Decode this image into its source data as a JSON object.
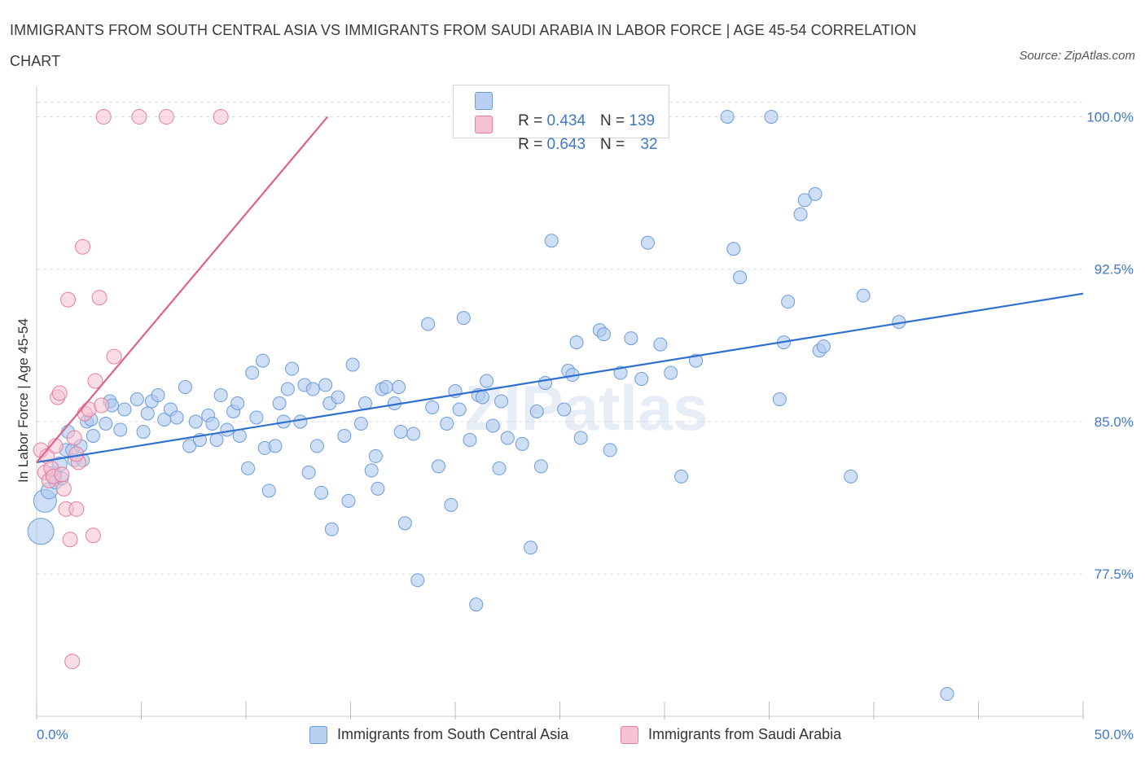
{
  "title": "IMMIGRANTS FROM SOUTH CENTRAL ASIA VS IMMIGRANTS FROM SAUDI ARABIA IN LABOR FORCE | AGE 45-54 CORRELATION CHART",
  "source": "Source: ZipAtlas.com",
  "watermark": "ZIPatlas",
  "legend_top": {
    "rows": [
      {
        "r_label": "R = ",
        "r_value": "0.434",
        "n_label": "N = ",
        "n_value": "139"
      },
      {
        "r_label": "R = ",
        "r_value": "0.643",
        "n_label": "N = ",
        "n_value": "32"
      }
    ]
  },
  "legend_bottom": {
    "items": [
      "Immigrants from South Central Asia",
      "Immigrants from Saudi Arabia"
    ]
  },
  "colors": {
    "blue_fill": "#adc9ef",
    "blue_stroke": "#6d9bdc",
    "blue_line": "#2f6fd0",
    "pink_fill": "#f6c0d0",
    "pink_stroke": "#e57ea0",
    "pink_line": "#e0608c",
    "tick_text": "#3f78c8",
    "grid": "#dddddd"
  },
  "chart_data": {
    "type": "scatter",
    "title": "IMMIGRANTS FROM SOUTH CENTRAL ASIA VS IMMIGRANTS FROM SAUDI ARABIA IN LABOR FORCE | AGE 45-54 CORRELATION CHART",
    "xlabel": "",
    "ylabel": "In Labor Force | Age 45-54",
    "xlim": [
      0,
      50
    ],
    "ylim": [
      70.5,
      101.5
    ],
    "x_tick_labels": [
      "0.0%",
      "50.0%"
    ],
    "x_tick_values": [
      0,
      50
    ],
    "y_tick_labels": [
      "77.5%",
      "85.0%",
      "92.5%",
      "100.0%"
    ],
    "y_tick_values": [
      77.5,
      85.0,
      92.5,
      100.0
    ],
    "grid": "horizontal dashed",
    "legend": "top-center and bottom",
    "series": [
      {
        "name": "Immigrants from South Central Asia",
        "R": 0.434,
        "N": 139,
        "trend": {
          "x": [
            0,
            50
          ],
          "y": [
            83.0,
            91.3
          ]
        },
        "points": [
          [
            0.2,
            79.6,
            16
          ],
          [
            0.4,
            81.1,
            14
          ],
          [
            0.6,
            81.6,
            10
          ],
          [
            0.8,
            82.4,
            10
          ],
          [
            0.9,
            82.0,
            8
          ],
          [
            1.1,
            82.9,
            9
          ],
          [
            1.2,
            82.2,
            8
          ],
          [
            1.4,
            83.6,
            8
          ],
          [
            1.5,
            84.5,
            8
          ],
          [
            1.7,
            83.6,
            8
          ],
          [
            1.8,
            83.1,
            8
          ],
          [
            2.1,
            83.8,
            8
          ],
          [
            2.2,
            83.1,
            8
          ],
          [
            2.4,
            85.0,
            8
          ],
          [
            2.6,
            85.1,
            8
          ],
          [
            2.7,
            84.3,
            8
          ],
          [
            3.3,
            84.9,
            8
          ],
          [
            3.5,
            86.0,
            8
          ],
          [
            3.6,
            85.8,
            8
          ],
          [
            4.0,
            84.6,
            8
          ],
          [
            4.2,
            85.6,
            8
          ],
          [
            4.8,
            86.1,
            8
          ],
          [
            5.1,
            84.5,
            8
          ],
          [
            5.3,
            85.4,
            8
          ],
          [
            5.5,
            86.0,
            8
          ],
          [
            5.8,
            86.3,
            8
          ],
          [
            6.1,
            85.1,
            8
          ],
          [
            6.4,
            85.6,
            8
          ],
          [
            6.7,
            85.2,
            8
          ],
          [
            7.1,
            86.7,
            8
          ],
          [
            7.3,
            83.8,
            8
          ],
          [
            7.6,
            85.0,
            8
          ],
          [
            7.8,
            84.1,
            8
          ],
          [
            8.2,
            85.3,
            8
          ],
          [
            8.4,
            84.9,
            8
          ],
          [
            8.6,
            84.1,
            8
          ],
          [
            8.8,
            86.3,
            8
          ],
          [
            9.1,
            84.6,
            8
          ],
          [
            9.4,
            85.5,
            8
          ],
          [
            9.6,
            85.9,
            8
          ],
          [
            9.7,
            84.3,
            8
          ],
          [
            10.1,
            82.7,
            8
          ],
          [
            10.3,
            87.4,
            8
          ],
          [
            10.5,
            85.2,
            8
          ],
          [
            10.8,
            88.0,
            8
          ],
          [
            10.9,
            83.7,
            8
          ],
          [
            11.1,
            81.6,
            8
          ],
          [
            11.4,
            83.8,
            8
          ],
          [
            11.6,
            85.9,
            8
          ],
          [
            11.8,
            85.0,
            8
          ],
          [
            12.0,
            86.6,
            8
          ],
          [
            12.2,
            87.6,
            8
          ],
          [
            12.6,
            85.0,
            8
          ],
          [
            12.8,
            86.8,
            8
          ],
          [
            13.0,
            82.5,
            8
          ],
          [
            13.2,
            86.6,
            8
          ],
          [
            13.4,
            83.8,
            8
          ],
          [
            13.6,
            81.5,
            8
          ],
          [
            13.8,
            86.8,
            8
          ],
          [
            14.0,
            85.9,
            8
          ],
          [
            14.1,
            79.7,
            8
          ],
          [
            14.4,
            86.2,
            8
          ],
          [
            14.7,
            84.3,
            8
          ],
          [
            14.9,
            81.1,
            8
          ],
          [
            15.1,
            87.8,
            8
          ],
          [
            15.5,
            84.9,
            8
          ],
          [
            15.7,
            85.9,
            8
          ],
          [
            16.0,
            82.6,
            8
          ],
          [
            16.2,
            83.3,
            8
          ],
          [
            16.3,
            81.7,
            8
          ],
          [
            16.5,
            86.6,
            8
          ],
          [
            16.7,
            86.7,
            8
          ],
          [
            17.1,
            85.9,
            8
          ],
          [
            17.3,
            86.7,
            8
          ],
          [
            17.4,
            84.5,
            8
          ],
          [
            17.6,
            80.0,
            8
          ],
          [
            18.0,
            84.4,
            8
          ],
          [
            18.2,
            77.2,
            8
          ],
          [
            18.7,
            89.8,
            8
          ],
          [
            18.9,
            85.7,
            8
          ],
          [
            19.2,
            82.8,
            8
          ],
          [
            19.6,
            84.9,
            8
          ],
          [
            19.8,
            80.9,
            8
          ],
          [
            20.0,
            86.5,
            8
          ],
          [
            20.2,
            85.6,
            8
          ],
          [
            20.4,
            90.1,
            8
          ],
          [
            20.7,
            84.1,
            8
          ],
          [
            21.1,
            86.3,
            8
          ],
          [
            21.3,
            86.2,
            8
          ],
          [
            21.5,
            87.0,
            8
          ],
          [
            21.8,
            84.8,
            8
          ],
          [
            22.1,
            82.7,
            8
          ],
          [
            22.2,
            86.0,
            8
          ],
          [
            22.5,
            84.2,
            8
          ],
          [
            23.2,
            83.9,
            8
          ],
          [
            23.6,
            78.8,
            8
          ],
          [
            23.9,
            85.5,
            8
          ],
          [
            24.1,
            82.8,
            8
          ],
          [
            24.3,
            86.9,
            8
          ],
          [
            24.6,
            93.9,
            8
          ],
          [
            25.2,
            85.6,
            8
          ],
          [
            25.4,
            87.5,
            8
          ],
          [
            25.6,
            87.3,
            8
          ],
          [
            25.8,
            88.9,
            8
          ],
          [
            26.0,
            84.2,
            8
          ],
          [
            26.9,
            89.5,
            8
          ],
          [
            27.1,
            89.3,
            8
          ],
          [
            27.4,
            83.6,
            8
          ],
          [
            27.9,
            87.4,
            8
          ],
          [
            28.4,
            89.1,
            8
          ],
          [
            28.9,
            87.1,
            8
          ],
          [
            29.2,
            93.8,
            8
          ],
          [
            29.5,
            100.0,
            8
          ],
          [
            29.8,
            88.8,
            8
          ],
          [
            30.3,
            87.4,
            8
          ],
          [
            30.8,
            82.3,
            8
          ],
          [
            31.5,
            88.0,
            8
          ],
          [
            33.0,
            100.0,
            8
          ],
          [
            33.3,
            93.5,
            8
          ],
          [
            33.6,
            92.1,
            8
          ],
          [
            35.1,
            100.0,
            8
          ],
          [
            35.5,
            86.1,
            8
          ],
          [
            35.7,
            88.9,
            8
          ],
          [
            35.9,
            90.9,
            8
          ],
          [
            36.5,
            95.2,
            8
          ],
          [
            36.7,
            95.9,
            8
          ],
          [
            37.2,
            96.2,
            8
          ],
          [
            37.4,
            88.5,
            8
          ],
          [
            37.6,
            88.7,
            8
          ],
          [
            38.9,
            82.3,
            8
          ],
          [
            39.5,
            91.2,
            8
          ],
          [
            41.2,
            89.9,
            8
          ],
          [
            43.5,
            71.6,
            8
          ],
          [
            21.0,
            76.0,
            8
          ]
        ]
      },
      {
        "name": "Immigrants from Saudi Arabia",
        "R": 0.643,
        "N": 32,
        "trend": {
          "x": [
            0,
            13.9
          ],
          "y": [
            83.0,
            100.0
          ]
        },
        "points": [
          [
            0.2,
            83.6,
            9
          ],
          [
            0.4,
            82.5,
            9
          ],
          [
            0.5,
            83.3,
            9
          ],
          [
            0.6,
            82.1,
            9
          ],
          [
            0.7,
            82.7,
            9
          ],
          [
            0.8,
            82.3,
            9
          ],
          [
            0.9,
            83.8,
            9
          ],
          [
            1.0,
            86.2,
            9
          ],
          [
            1.1,
            86.4,
            9
          ],
          [
            1.2,
            82.4,
            9
          ],
          [
            1.3,
            81.7,
            9
          ],
          [
            1.4,
            80.7,
            9
          ],
          [
            1.5,
            91.0,
            9
          ],
          [
            1.6,
            79.2,
            9
          ],
          [
            1.7,
            73.2,
            9
          ],
          [
            1.8,
            84.2,
            9
          ],
          [
            1.9,
            80.7,
            9
          ],
          [
            2.0,
            83.0,
            9
          ],
          [
            2.2,
            93.6,
            9
          ],
          [
            2.3,
            85.4,
            9
          ],
          [
            2.5,
            85.6,
            9
          ],
          [
            2.7,
            79.4,
            9
          ],
          [
            2.8,
            87.0,
            9
          ],
          [
            3.0,
            91.1,
            9
          ],
          [
            3.1,
            85.8,
            9
          ],
          [
            3.2,
            100.0,
            9
          ],
          [
            3.7,
            88.2,
            9
          ],
          [
            4.9,
            100.0,
            9
          ],
          [
            6.2,
            100.0,
            9
          ],
          [
            8.8,
            100.0,
            9
          ],
          [
            20.9,
            100.0,
            9
          ],
          [
            1.9,
            83.4,
            9
          ]
        ]
      }
    ]
  }
}
